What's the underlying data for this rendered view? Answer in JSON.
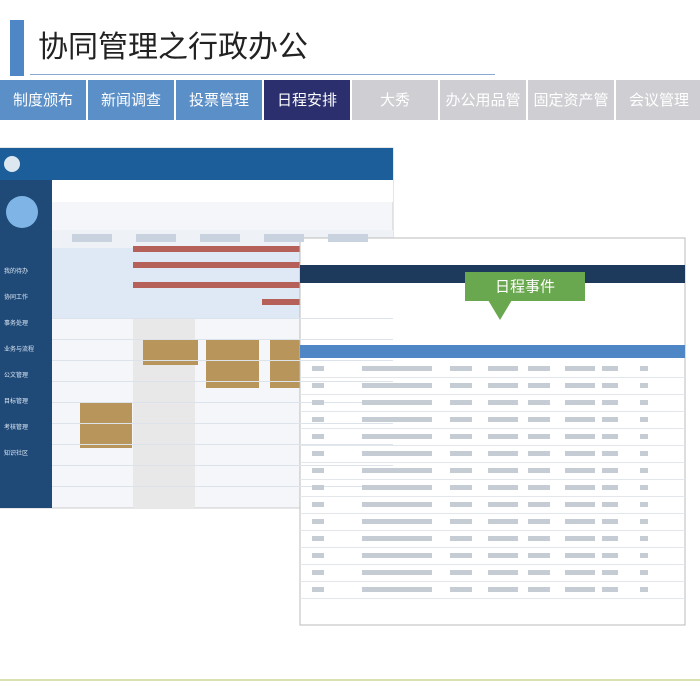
{
  "header": {
    "title": "协同管理之行政办公"
  },
  "tabs": [
    {
      "label": "制度颁布",
      "state": "normal"
    },
    {
      "label": "新闻调查",
      "state": "normal"
    },
    {
      "label": "投票管理",
      "state": "normal"
    },
    {
      "label": "日程安排",
      "state": "active"
    },
    {
      "label": "大秀",
      "state": "muted"
    },
    {
      "label": "办公用品管理",
      "state": "muted"
    },
    {
      "label": "固定资产管理",
      "state": "muted"
    },
    {
      "label": "会议管理",
      "state": "muted"
    }
  ],
  "left_screen": {
    "sidebar": [
      "我的待办",
      "协同工作",
      "事务处理",
      "业务与流程",
      "公文管理",
      "目标管理",
      "考核管理",
      "知识社区"
    ]
  },
  "right_screen": {
    "callout": "日程事件"
  }
}
